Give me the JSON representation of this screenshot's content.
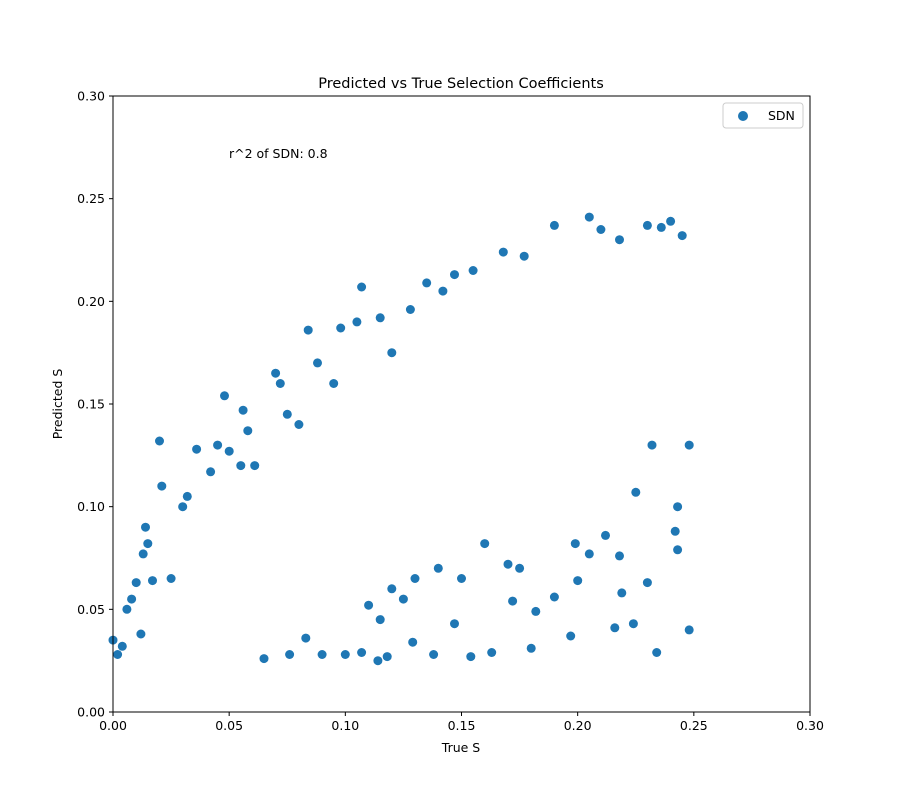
{
  "chart_data": {
    "type": "scatter",
    "title": "Predicted vs True Selection Coefficients",
    "xlabel": "True S",
    "ylabel": "Predicted S",
    "xlim": [
      0.0,
      0.3
    ],
    "ylim": [
      0.0,
      0.3
    ],
    "xticks": [
      "0.00",
      "0.05",
      "0.10",
      "0.15",
      "0.20",
      "0.25",
      "0.30"
    ],
    "yticks": [
      "0.00",
      "0.05",
      "0.10",
      "0.15",
      "0.20",
      "0.25",
      "0.30"
    ],
    "grid": false,
    "legend": {
      "position": "top-right",
      "entries": [
        "SDN"
      ]
    },
    "annotation": "r^2 of SDN: 0.8",
    "series": [
      {
        "name": "SDN",
        "color": "#1f77b4",
        "points": [
          [
            0.0,
            0.035
          ],
          [
            0.002,
            0.028
          ],
          [
            0.004,
            0.032
          ],
          [
            0.006,
            0.05
          ],
          [
            0.008,
            0.055
          ],
          [
            0.01,
            0.063
          ],
          [
            0.012,
            0.038
          ],
          [
            0.014,
            0.09
          ],
          [
            0.015,
            0.082
          ],
          [
            0.013,
            0.077
          ],
          [
            0.017,
            0.064
          ],
          [
            0.02,
            0.132
          ],
          [
            0.021,
            0.11
          ],
          [
            0.025,
            0.065
          ],
          [
            0.03,
            0.1
          ],
          [
            0.032,
            0.105
          ],
          [
            0.036,
            0.128
          ],
          [
            0.042,
            0.117
          ],
          [
            0.048,
            0.154
          ],
          [
            0.05,
            0.127
          ],
          [
            0.055,
            0.12
          ],
          [
            0.056,
            0.147
          ],
          [
            0.058,
            0.137
          ],
          [
            0.061,
            0.12
          ],
          [
            0.045,
            0.13
          ],
          [
            0.07,
            0.165
          ],
          [
            0.072,
            0.16
          ],
          [
            0.075,
            0.145
          ],
          [
            0.08,
            0.14
          ],
          [
            0.084,
            0.186
          ],
          [
            0.088,
            0.17
          ],
          [
            0.095,
            0.16
          ],
          [
            0.098,
            0.187
          ],
          [
            0.105,
            0.19
          ],
          [
            0.107,
            0.207
          ],
          [
            0.115,
            0.192
          ],
          [
            0.12,
            0.175
          ],
          [
            0.128,
            0.196
          ],
          [
            0.135,
            0.209
          ],
          [
            0.142,
            0.205
          ],
          [
            0.147,
            0.213
          ],
          [
            0.155,
            0.215
          ],
          [
            0.168,
            0.224
          ],
          [
            0.177,
            0.222
          ],
          [
            0.19,
            0.237
          ],
          [
            0.205,
            0.241
          ],
          [
            0.21,
            0.235
          ],
          [
            0.218,
            0.23
          ],
          [
            0.23,
            0.237
          ],
          [
            0.236,
            0.236
          ],
          [
            0.24,
            0.239
          ],
          [
            0.245,
            0.232
          ],
          [
            0.147,
            0.043
          ],
          [
            0.154,
            0.027
          ],
          [
            0.163,
            0.029
          ],
          [
            0.18,
            0.031
          ],
          [
            0.197,
            0.037
          ],
          [
            0.216,
            0.041
          ],
          [
            0.224,
            0.043
          ],
          [
            0.234,
            0.029
          ],
          [
            0.248,
            0.04
          ],
          [
            0.19,
            0.056
          ],
          [
            0.2,
            0.064
          ],
          [
            0.219,
            0.058
          ],
          [
            0.23,
            0.063
          ],
          [
            0.172,
            0.054
          ],
          [
            0.182,
            0.049
          ],
          [
            0.218,
            0.076
          ],
          [
            0.243,
            0.079
          ],
          [
            0.242,
            0.088
          ],
          [
            0.243,
            0.1
          ],
          [
            0.205,
            0.077
          ],
          [
            0.212,
            0.086
          ],
          [
            0.199,
            0.082
          ],
          [
            0.225,
            0.107
          ],
          [
            0.248,
            0.13
          ],
          [
            0.232,
            0.13
          ],
          [
            0.129,
            0.034
          ],
          [
            0.138,
            0.028
          ],
          [
            0.118,
            0.027
          ],
          [
            0.114,
            0.025
          ],
          [
            0.107,
            0.029
          ],
          [
            0.09,
            0.028
          ],
          [
            0.083,
            0.036
          ],
          [
            0.076,
            0.028
          ],
          [
            0.065,
            0.026
          ],
          [
            0.1,
            0.028
          ],
          [
            0.12,
            0.06
          ],
          [
            0.13,
            0.065
          ],
          [
            0.14,
            0.07
          ],
          [
            0.15,
            0.065
          ],
          [
            0.16,
            0.082
          ],
          [
            0.17,
            0.072
          ],
          [
            0.175,
            0.07
          ],
          [
            0.115,
            0.045
          ],
          [
            0.11,
            0.052
          ],
          [
            0.125,
            0.055
          ]
        ]
      }
    ]
  }
}
